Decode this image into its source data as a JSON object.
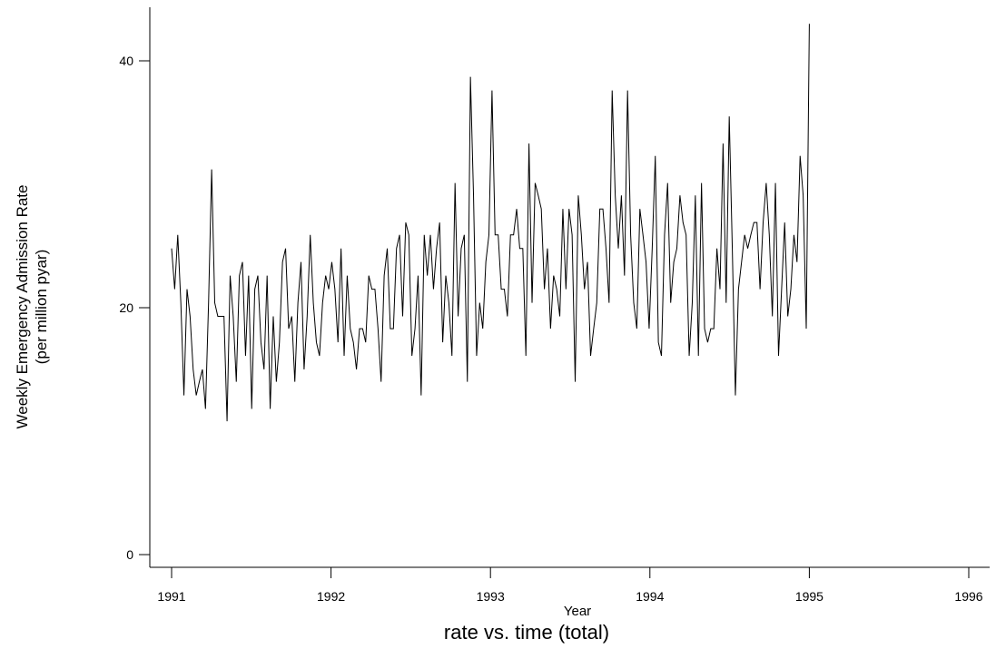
{
  "chart_data": {
    "type": "line",
    "title": "rate vs. time (total)",
    "xlabel": "Year",
    "ylabel_line1": "Weekly Emergency Admission Rate",
    "ylabel_line2": "(per million pyar)",
    "xlim": [
      1991,
      1996
    ],
    "ylim": [
      0,
      40
    ],
    "x_ticks": [
      1991,
      1992,
      1993,
      1994,
      1995,
      1996
    ],
    "y_ticks": [
      0,
      20,
      40
    ],
    "grid": false,
    "series": [
      {
        "values": [
          24.8,
          21.5,
          25.9,
          20.4,
          12.9,
          21.5,
          19.3,
          15.0,
          12.9,
          14.0,
          15.0,
          11.8,
          20.4,
          31.2,
          20.4,
          19.3,
          19.3,
          19.3,
          10.8,
          22.6,
          19.3,
          14.0,
          22.6,
          23.7,
          16.1,
          22.6,
          11.8,
          21.5,
          22.6,
          17.2,
          15.0,
          22.6,
          11.8,
          19.3,
          14.0,
          17.2,
          23.7,
          24.8,
          18.3,
          19.3,
          14.0,
          20.4,
          23.7,
          15.0,
          19.3,
          25.9,
          20.4,
          17.2,
          16.1,
          20.4,
          22.6,
          21.5,
          23.7,
          21.5,
          17.2,
          24.8,
          16.1,
          22.6,
          18.3,
          17.2,
          15.0,
          18.3,
          18.3,
          17.2,
          22.6,
          21.5,
          21.5,
          18.3,
          14.0,
          22.6,
          24.8,
          18.3,
          18.3,
          24.8,
          25.9,
          19.3,
          26.9,
          25.9,
          16.1,
          18.3,
          22.6,
          12.9,
          25.9,
          22.6,
          25.9,
          21.5,
          24.8,
          26.9,
          17.2,
          22.6,
          20.4,
          16.1,
          30.1,
          19.3,
          24.8,
          25.9,
          14.0,
          38.7,
          29.1,
          16.1,
          20.4,
          18.3,
          23.7,
          25.9,
          37.6,
          25.9,
          25.9,
          21.5,
          21.5,
          19.3,
          25.9,
          25.9,
          28.0,
          24.8,
          24.8,
          16.1,
          33.3,
          20.4,
          30.1,
          29.1,
          28.0,
          21.5,
          24.8,
          18.3,
          22.6,
          21.5,
          19.3,
          28.0,
          21.5,
          28.0,
          25.9,
          14.0,
          29.1,
          25.9,
          21.5,
          23.7,
          16.1,
          18.3,
          20.4,
          28.0,
          28.0,
          24.8,
          20.4,
          37.6,
          29.1,
          24.8,
          29.1,
          22.6,
          37.6,
          25.9,
          20.4,
          18.3,
          28.0,
          25.9,
          23.7,
          18.3,
          24.8,
          32.3,
          17.2,
          16.1,
          25.9,
          30.1,
          20.4,
          23.7,
          24.8,
          29.1,
          26.9,
          25.9,
          16.1,
          20.4,
          29.1,
          16.1,
          30.1,
          18.3,
          17.2,
          18.3,
          18.3,
          24.8,
          21.5,
          33.3,
          20.4,
          35.5,
          24.8,
          12.9,
          21.5,
          23.7,
          25.9,
          24.8,
          25.9,
          26.9,
          26.9,
          21.5,
          26.9,
          30.1,
          25.9,
          19.3,
          30.1,
          16.1,
          21.5,
          26.9,
          19.3,
          21.5,
          25.9,
          23.7,
          32.3,
          29.1,
          18.3,
          43.0
        ]
      }
    ]
  }
}
